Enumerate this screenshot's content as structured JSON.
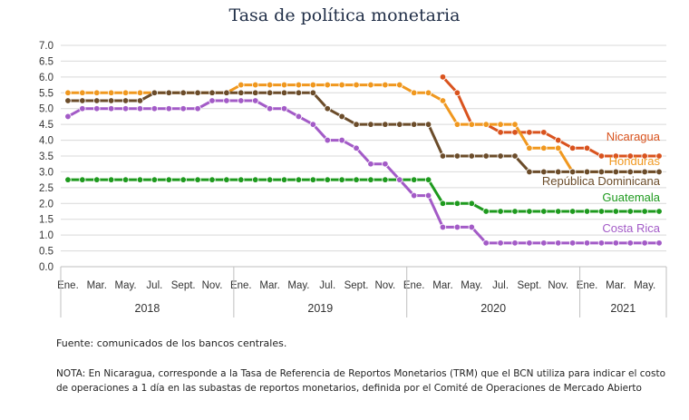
{
  "chart_data": {
    "type": "line",
    "title": "Tasa de política monetaria",
    "ylim": [
      0,
      7
    ],
    "yticks": [
      "0.0",
      "0.5",
      "1.0",
      "1.5",
      "2.0",
      "2.5",
      "3.0",
      "3.5",
      "4.0",
      "4.5",
      "5.0",
      "5.5",
      "6.0",
      "6.5",
      "7.0"
    ],
    "month_ticks": [
      "Ene.",
      "Mar.",
      "May.",
      "Jul.",
      "Sept.",
      "Nov.",
      "Ene.",
      "Mar.",
      "May.",
      "Jul.",
      "Sept.",
      "Nov.",
      "Ene.",
      "Mar.",
      "May.",
      "Jul.",
      "Sept.",
      "Nov.",
      "Ene.",
      "Mar.",
      "May."
    ],
    "years": [
      "2018",
      "2019",
      "2020",
      "2021"
    ],
    "x_start": "2018-01",
    "x_end": "2021-06",
    "grid": true,
    "series": [
      {
        "name": "Nicaragua",
        "color": "#d9531e",
        "start": "2020-03",
        "values": [
          6.0,
          5.5,
          4.5,
          4.5,
          4.25,
          4.25,
          4.25,
          4.25,
          4.0,
          3.75,
          3.75,
          3.5,
          3.5,
          3.5,
          3.5,
          3.5
        ]
      },
      {
        "name": "Honduras",
        "color": "#f0981f",
        "start": "2018-01",
        "values": [
          5.5,
          5.5,
          5.5,
          5.5,
          5.5,
          5.5,
          5.5,
          5.5,
          5.5,
          5.5,
          5.5,
          5.5,
          5.75,
          5.75,
          5.75,
          5.75,
          5.75,
          5.75,
          5.75,
          5.75,
          5.75,
          5.75,
          5.75,
          5.75,
          5.5,
          5.5,
          5.25,
          4.5,
          4.5,
          4.5,
          4.5,
          4.5,
          3.75,
          3.75,
          3.75,
          3.0,
          3.0,
          3.0,
          3.0,
          3.0,
          3.0,
          3.0
        ]
      },
      {
        "name": "República Dominicana",
        "color": "#6b4c2a",
        "start": "2018-01",
        "values": [
          5.25,
          5.25,
          5.25,
          5.25,
          5.25,
          5.25,
          5.5,
          5.5,
          5.5,
          5.5,
          5.5,
          5.5,
          5.5,
          5.5,
          5.5,
          5.5,
          5.5,
          5.5,
          5.0,
          4.75,
          4.5,
          4.5,
          4.5,
          4.5,
          4.5,
          4.5,
          3.5,
          3.5,
          3.5,
          3.5,
          3.5,
          3.5,
          3.0,
          3.0,
          3.0,
          3.0,
          3.0,
          3.0,
          3.0,
          3.0,
          3.0,
          3.0
        ]
      },
      {
        "name": "Guatemala",
        "color": "#1e9a1e",
        "start": "2018-01",
        "values": [
          2.75,
          2.75,
          2.75,
          2.75,
          2.75,
          2.75,
          2.75,
          2.75,
          2.75,
          2.75,
          2.75,
          2.75,
          2.75,
          2.75,
          2.75,
          2.75,
          2.75,
          2.75,
          2.75,
          2.75,
          2.75,
          2.75,
          2.75,
          2.75,
          2.75,
          2.75,
          2.0,
          2.0,
          2.0,
          1.75,
          1.75,
          1.75,
          1.75,
          1.75,
          1.75,
          1.75,
          1.75,
          1.75,
          1.75,
          1.75,
          1.75,
          1.75
        ]
      },
      {
        "name": "Costa Rica",
        "color": "#a35bc7",
        "start": "2018-01",
        "values": [
          4.75,
          5.0,
          5.0,
          5.0,
          5.0,
          5.0,
          5.0,
          5.0,
          5.0,
          5.0,
          5.25,
          5.25,
          5.25,
          5.25,
          5.0,
          5.0,
          4.75,
          4.5,
          4.0,
          4.0,
          3.75,
          3.25,
          3.25,
          2.75,
          2.25,
          2.25,
          1.25,
          1.25,
          1.25,
          0.75,
          0.75,
          0.75,
          0.75,
          0.75,
          0.75,
          0.75,
          0.75,
          0.75,
          0.75,
          0.75,
          0.75,
          0.75
        ]
      }
    ]
  },
  "source_note": "Fuente: comunicados de los bancos centrales.",
  "footnote": "NOTA: En Nicaragua, corresponde a la Tasa de Referencia de Reportos Monetarios (TRM) que el BCN utiliza para indicar el costo de operaciones a 1 día en las subastas de reportos monetarios, definida por el Comité de Operaciones de Mercado Abierto"
}
